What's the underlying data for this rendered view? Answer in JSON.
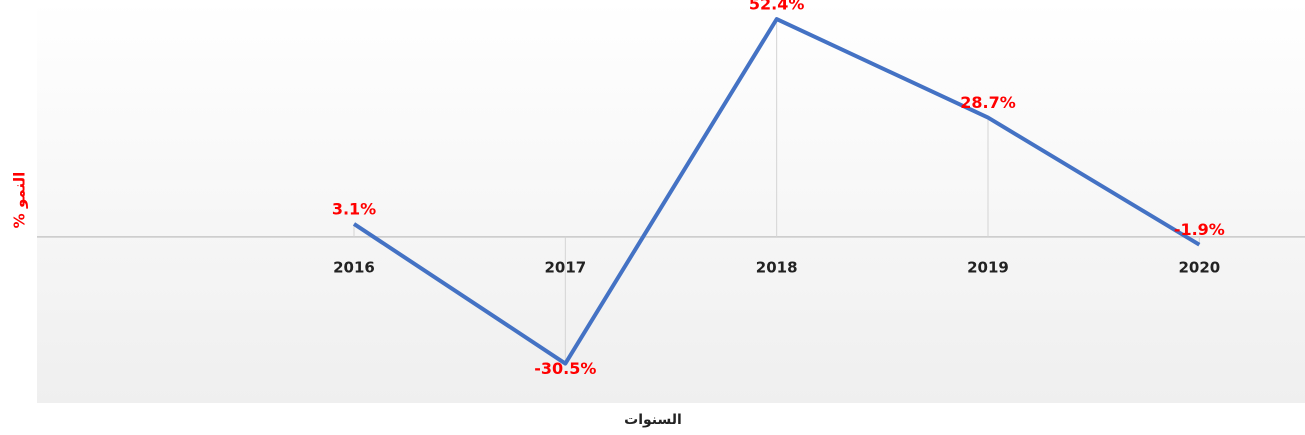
{
  "chart_data": {
    "type": "line",
    "x_label": "السنوات",
    "y_label": "% النمو",
    "categories": [
      null,
      "2016",
      "2017",
      "2018",
      "2019",
      "2020"
    ],
    "series": [
      {
        "color": "#4472c4",
        "values": [
          null,
          3.1,
          -30.5,
          52.4,
          28.7,
          -1.9
        ],
        "value_labels": [
          null,
          "3.1%",
          "-30.5%",
          "52.4%",
          "28.7%",
          "-1.9%"
        ]
      }
    ],
    "ylim": [
      -40,
      57
    ]
  }
}
